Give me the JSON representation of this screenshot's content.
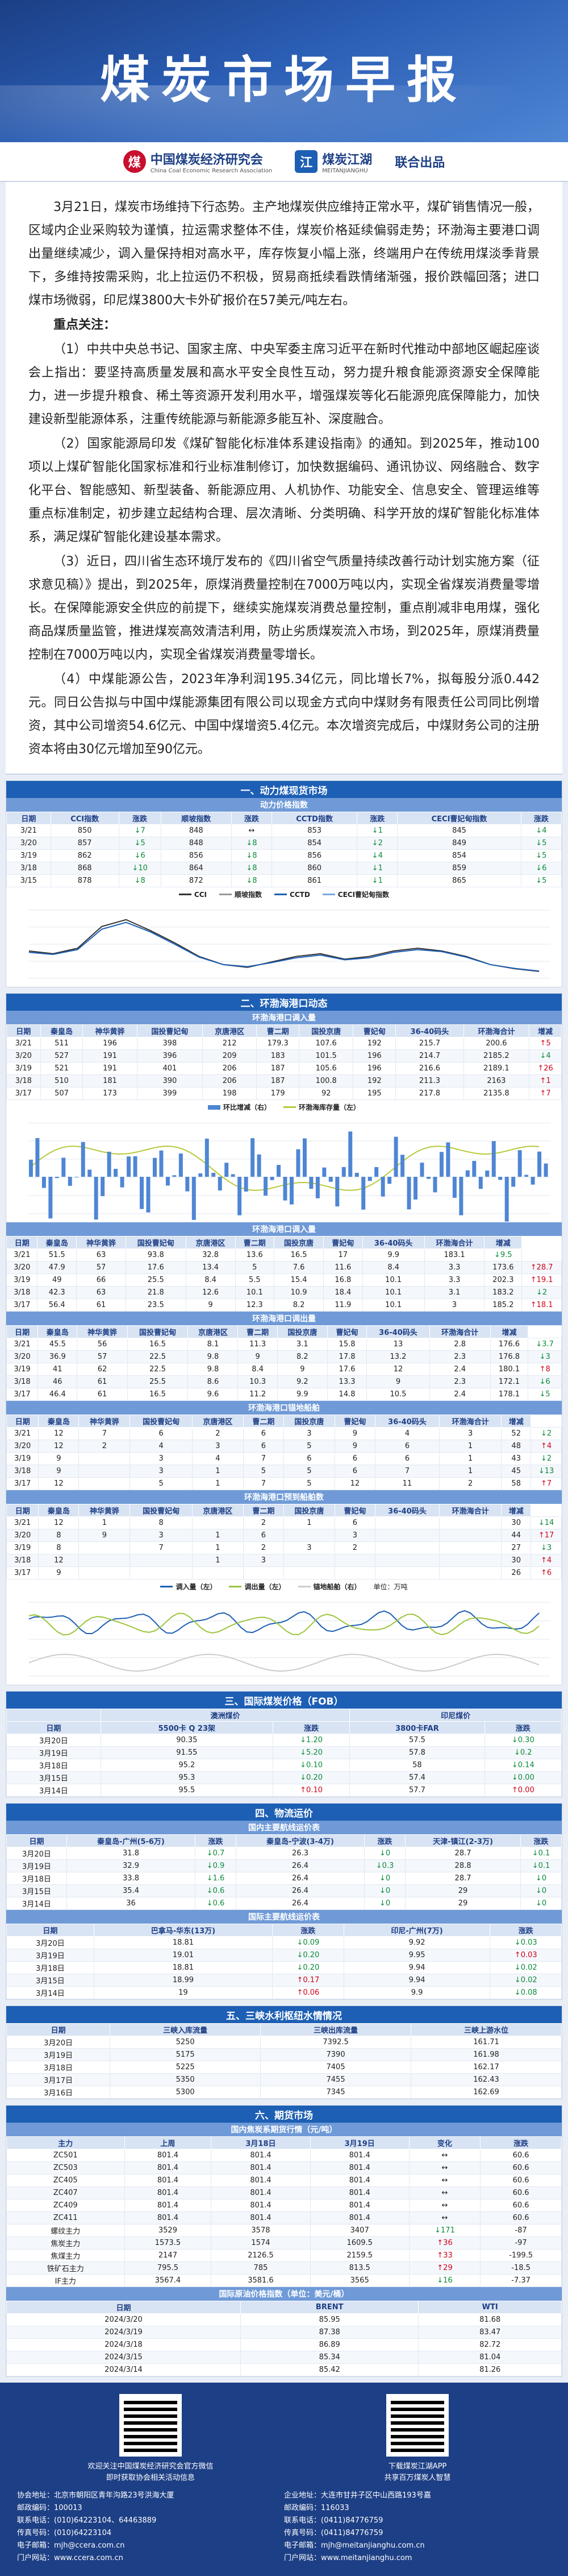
{
  "banner": {
    "title": "煤炭市场早报"
  },
  "logos": {
    "org1_cn": "中国煤炭经济研究会",
    "org1_en": "China Coal Economic Research Association",
    "org2_cn": "煤炭江湖",
    "org2_en": "MEITANJIANGHU",
    "joint": "联合出品"
  },
  "summary": {
    "p1": "3月21日，煤炭市场维持下行态势。主产地煤炭供应维持正常水平，煤矿销售情况一般，区域内企业采购较为谨慎，拉运需求整体不佳，煤炭价格延续偏弱走势；环渤海主要港口调出量继续减少，调入量保持相对高水平，库存恢复小幅上涨，终端用户在传统用煤淡季背景下，多维持按需采购，北上拉运仍不积极，贸易商抵续看跌情绪渐强，报价跌幅回落；进口煤市场微弱，印尼煤3800大卡外矿报价在57美元/吨左右。",
    "key_title": "重点关注：",
    "k1": "（1）中共中央总书记、国家主席、中央军委主席习近平在新时代推动中部地区崛起座谈会上指出：要坚持高质量发展和高水平安全良性互动，努力提升粮食能源资源安全保障能力，进一步提升粮食、稀土等资源开发利用水平，增强煤炭等化石能源兜底保障能力，加快建设新型能源体系，注重传统能源与新能源多能互补、深度融合。",
    "k2": "（2）国家能源局印发《煤矿智能化标准体系建设指南》的通知。到2025年，推动100项以上煤矿智能化国家标准和行业标准制修订，加快数据编码、通讯协议、网络融合、数字化平台、智能感知、新型装备、新能源应用、人机协作、功能安全、信息安全、管理运维等重点标准制定，初步建立起结构合理、层次清晰、分类明确、科学开放的煤矿智能化标准体系，满足煤矿智能化建设基本需求。",
    "k3": "（3）近日，四川省生态环境厅发布的《四川省空气质量持续改善行动计划实施方案（征求意见稿）》提出，到2025年，原煤消费量控制在7000万吨以内，实现全省煤炭消费量零增长。在保障能源安全供应的前提下，继续实施煤炭消费总量控制，重点削减非电用煤，强化商品煤质量监管，推进煤炭高效清洁利用，防止劣质煤炭流入市场，到2025年，原煤消费量控制在7000万吨以内，实现全省煤炭消费量零增长。",
    "k4": "（4）中煤能源公告，2023年净利润195.34亿元，同比增长7%，拟每股分派0.442元。同日公告拟与中国中煤能源集团有限公司以现金方式向中煤财务有限责任公司同比例增资，其中公司增资54.6亿元、中国中煤增资5.4亿元。本次增资完成后，中煤财务公司的注册资本将由30亿元增加至90亿元。"
  },
  "s1": {
    "title": "一、动力煤现货市场",
    "sub": "动力价格指数",
    "headers": [
      "日期",
      "CCI指数",
      "涨跌",
      "顺坡指数",
      "涨跌",
      "CCTD指数",
      "涨跌",
      "CECI曹妃甸指数",
      "涨跌"
    ],
    "rows": [
      [
        "3/21",
        "850",
        "↓7",
        "848",
        "↔",
        "853",
        "↓1",
        "845",
        "↓4"
      ],
      [
        "3/20",
        "857",
        "↓5",
        "848",
        "↓8",
        "854",
        "↓2",
        "849",
        "↓5"
      ],
      [
        "3/19",
        "862",
        "↓6",
        "856",
        "↓8",
        "856",
        "↓4",
        "854",
        "↓5"
      ],
      [
        "3/18",
        "868",
        "↓10",
        "864",
        "↓8",
        "860",
        "↓1",
        "859",
        "↓6"
      ],
      [
        "3/15",
        "878",
        "↓8",
        "872",
        "↓8",
        "861",
        "↓1",
        "865",
        "↓5"
      ]
    ],
    "legend": [
      "CCI",
      "顺坡指数",
      "CCTD",
      "CECI曹妃甸指数"
    ],
    "chart_data": {
      "type": "line",
      "series": [
        {
          "name": "CCI",
          "values": [
            1000,
            980,
            1020,
            1180,
            1230,
            1150,
            1060,
            960,
            900,
            880,
            920,
            960,
            980,
            940,
            960,
            1000,
            1020,
            1000,
            960,
            900,
            870,
            850
          ]
        },
        {
          "name": "CCTD",
          "values": [
            990,
            975,
            1010,
            1160,
            1210,
            1140,
            1050,
            955,
            900,
            885,
            915,
            950,
            970,
            935,
            950,
            990,
            1010,
            995,
            955,
            900,
            872,
            853
          ]
        }
      ]
    }
  },
  "s2": {
    "title": "二、环渤海港口动态",
    "sub1": "环渤海港口调入量",
    "headers": [
      "日期",
      "秦皇岛",
      "神华黄骅",
      "国投曹妃甸",
      "京唐港区",
      "曹二期",
      "国投京唐",
      "曹妃甸",
      "36-40码头",
      "环渤海合计",
      "增减"
    ],
    "inflow": [
      [
        "3/21",
        "511",
        "196",
        "398",
        "212",
        "179.3",
        "107.6",
        "192",
        "215.7",
        "200.6",
        "↑5"
      ],
      [
        "3/20",
        "527",
        "191",
        "396",
        "209",
        "183",
        "101.5",
        "196",
        "214.7",
        "2185.2",
        "↓4"
      ],
      [
        "3/19",
        "521",
        "191",
        "401",
        "206",
        "187",
        "105.6",
        "196",
        "216.6",
        "2189.1",
        "↑26"
      ],
      [
        "3/18",
        "510",
        "181",
        "390",
        "206",
        "187",
        "100.8",
        "192",
        "211.3",
        "2163",
        "↑1"
      ],
      [
        "3/17",
        "507",
        "173",
        "399",
        "198",
        "179",
        "92",
        "195",
        "217.8",
        "2135.8",
        "↑7"
      ]
    ],
    "chart1_legend": [
      "环比增减（右）",
      "环渤海库存量（左）"
    ],
    "sub2": "环渤海港口调入量",
    "inflow2": [
      [
        "3/21",
        "51.5",
        "63",
        "93.8",
        "32.8",
        "13.6",
        "16.5",
        "17",
        "9.9",
        "183.1",
        "↓9.5"
      ],
      [
        "3/20",
        "47.9",
        "57",
        "17.6",
        "13.4",
        "5",
        "7.6",
        "11.6",
        "8.4",
        "3.3",
        "173.6",
        "↑28.7"
      ],
      [
        "3/19",
        "49",
        "66",
        "25.5",
        "8.4",
        "5.5",
        "15.4",
        "16.8",
        "10.1",
        "3.3",
        "202.3",
        "↑19.1"
      ],
      [
        "3/18",
        "42.3",
        "63",
        "21.8",
        "12.6",
        "10.1",
        "10.9",
        "18.4",
        "10.1",
        "3.1",
        "183.2",
        "↓2"
      ],
      [
        "3/17",
        "56.4",
        "61",
        "23.5",
        "9",
        "12.3",
        "8.2",
        "11.9",
        "10.1",
        "3",
        "185.2",
        "↑18.1"
      ]
    ],
    "sub3": "环渤海港口调出量",
    "outflow": [
      [
        "3/21",
        "45.5",
        "56",
        "16.5",
        "8.1",
        "11.3",
        "3.1",
        "15.8",
        "13",
        "2.8",
        "176.6",
        "↓3.7"
      ],
      [
        "3/20",
        "36.9",
        "57",
        "22.5",
        "9.8",
        "9",
        "8.2",
        "17.8",
        "13.2",
        "2.3",
        "176.8",
        "↓3"
      ],
      [
        "3/19",
        "41",
        "62",
        "22.5",
        "9.8",
        "8.4",
        "9",
        "17.6",
        "12",
        "2.4",
        "180.1",
        "↑8"
      ],
      [
        "3/18",
        "46",
        "61",
        "25.5",
        "8.6",
        "10.3",
        "9.2",
        "13.3",
        "9",
        "2.3",
        "172.1",
        "↓6"
      ],
      [
        "3/17",
        "46.4",
        "61",
        "16.5",
        "9.6",
        "11.2",
        "9.9",
        "14.8",
        "10.5",
        "2.4",
        "178.1",
        "↓5"
      ]
    ],
    "sub4": "环渤海港口锚地船舶",
    "anchor": [
      [
        "3/21",
        "12",
        "7",
        "6",
        "2",
        "6",
        "3",
        "9",
        "4",
        "3",
        "52",
        "↓2"
      ],
      [
        "3/20",
        "12",
        "2",
        "4",
        "3",
        "6",
        "5",
        "9",
        "6",
        "1",
        "48",
        "↑4"
      ],
      [
        "3/19",
        "9",
        "",
        "3",
        "4",
        "7",
        "6",
        "6",
        "6",
        "1",
        "43",
        "↓2"
      ],
      [
        "3/18",
        "9",
        "",
        "3",
        "1",
        "5",
        "5",
        "6",
        "7",
        "1",
        "45",
        "↓13"
      ],
      [
        "3/17",
        "12",
        "",
        "5",
        "1",
        "7",
        "5",
        "12",
        "11",
        "2",
        "58",
        "↑7"
      ]
    ],
    "sub5": "环渤海港口预到船舶数",
    "arrival": [
      [
        "3/21",
        "12",
        "1",
        "8",
        "",
        "2",
        "1",
        "6",
        "",
        "",
        "30",
        "↓14"
      ],
      [
        "3/20",
        "8",
        "9",
        "3",
        "1",
        "6",
        "",
        "3",
        "",
        "",
        "44",
        "↑17"
      ],
      [
        "3/19",
        "8",
        "",
        "7",
        "1",
        "2",
        "3",
        "2",
        "",
        "",
        "27",
        "↓3"
      ],
      [
        "3/18",
        "12",
        "",
        "",
        "1",
        "3",
        "",
        "",
        "",
        "",
        "30",
        "↑4"
      ],
      [
        "3/17",
        "9",
        "",
        "",
        "",
        "",
        "",
        "",
        "",
        "",
        "26",
        "↑6"
      ]
    ],
    "chart2_legend": [
      "调入量（左）",
      "调出量（左）",
      "锚地船舶（右）"
    ],
    "chart2_unit": "单位：万吨"
  },
  "s3": {
    "title": "三、国际煤炭价格（FOB）",
    "sub_a": "澳洲煤价",
    "sub_b": "印尼煤价",
    "headers": [
      "日期",
      "5500卡 Q 23架",
      "涨跌",
      "3800卡FAR",
      "涨跌"
    ],
    "rows": [
      [
        "3月20日",
        "90.35",
        "↓1.20",
        "57.5",
        "↓0.30"
      ],
      [
        "3月19日",
        "91.55",
        "↓5.20",
        "57.8",
        "↓0.2"
      ],
      [
        "3月18日",
        "95.2",
        "↓0.10",
        "58",
        "↓0.14"
      ],
      [
        "3月15日",
        "95.3",
        "↓0.20",
        "57.4",
        "↓0.00"
      ],
      [
        "3月14日",
        "95.5",
        "↑0.10",
        "57.7",
        "↑0.00"
      ]
    ]
  },
  "s4": {
    "title": "四、物流运价",
    "sub1": "国内主要航线运价表",
    "headers1": [
      "日期",
      "秦皇岛-广州(5-6万)",
      "涨跌",
      "秦皇岛-宁波(3-4万)",
      "涨跌",
      "天津-镇江(2-3万)",
      "涨跌"
    ],
    "rows1": [
      [
        "3月20日",
        "31.8",
        "↓0.7",
        "26.3",
        "↓0",
        "28.7",
        "↓0.1"
      ],
      [
        "3月19日",
        "32.9",
        "↓0.9",
        "26.4",
        "↓0.3",
        "28.8",
        "↓0.1"
      ],
      [
        "3月18日",
        "33.8",
        "↓1.6",
        "26.4",
        "↓0",
        "28.7",
        "↓0"
      ],
      [
        "3月15日",
        "35.4",
        "↓0.6",
        "26.4",
        "↓0",
        "29",
        "↓0"
      ],
      [
        "3月14日",
        "36",
        "↓0.6",
        "26.4",
        "↓0",
        "29",
        "↓0"
      ]
    ],
    "sub2": "国际主要航线运价表",
    "headers2": [
      "日期",
      "巴拿马-华东(13万)",
      "涨跌",
      "印尼-广州(7万)",
      "涨跌"
    ],
    "rows2": [
      [
        "3月20日",
        "18.81",
        "↓0.09",
        "9.92",
        "↓0.03"
      ],
      [
        "3月19日",
        "19.01",
        "↓0.20",
        "9.95",
        "↑0.03"
      ],
      [
        "3月18日",
        "18.81",
        "↓0.20",
        "9.94",
        "↓0.02"
      ],
      [
        "3月15日",
        "18.99",
        "↑0.17",
        "9.94",
        "↓0.02"
      ],
      [
        "3月14日",
        "19",
        "↑0.06",
        "9.9",
        "↓0.08"
      ]
    ]
  },
  "s5": {
    "title": "五、三峡水利枢纽水情情况",
    "headers": [
      "日期",
      "三峡入库流量",
      "三峡出库流量",
      "三峡上游水位"
    ],
    "rows": [
      [
        "3月20日",
        "5250",
        "7392.5",
        "161.71"
      ],
      [
        "3月19日",
        "5175",
        "7390",
        "161.98"
      ],
      [
        "3月18日",
        "5225",
        "7405",
        "162.17"
      ],
      [
        "3月17日",
        "5350",
        "7455",
        "162.43"
      ],
      [
        "3月16日",
        "5300",
        "7345",
        "162.69"
      ]
    ]
  },
  "s6": {
    "title": "六、期货市场",
    "sub1": "国内焦炭系期货行情（元/吨）",
    "headers1": [
      "主力",
      "上周",
      "3月18日",
      "3月19日",
      "变化",
      "涨跌"
    ],
    "rows1": [
      [
        "ZC501",
        "801.4",
        "801.4",
        "801.4",
        "↔",
        "60.6"
      ],
      [
        "ZC503",
        "801.4",
        "801.4",
        "801.4",
        "↔",
        "60.6"
      ],
      [
        "ZC405",
        "801.4",
        "801.4",
        "801.4",
        "↔",
        "60.6"
      ],
      [
        "ZC407",
        "801.4",
        "801.4",
        "801.4",
        "↔",
        "60.6"
      ],
      [
        "ZC409",
        "801.4",
        "801.4",
        "801.4",
        "↔",
        "60.6"
      ],
      [
        "ZC411",
        "801.4",
        "801.4",
        "801.4",
        "↔",
        "60.6"
      ],
      [
        "螺纹主力",
        "3529",
        "3578",
        "3407",
        "↓171",
        "-87"
      ],
      [
        "焦炭主力",
        "1573.5",
        "1574",
        "1609.5",
        "↑36",
        "-97"
      ],
      [
        "焦煤主力",
        "2147",
        "2126.5",
        "2159.5",
        "↑33",
        "-199.5"
      ],
      [
        "铁矿石主力",
        "795.5",
        "785",
        "813.5",
        "↑29",
        "-18.5"
      ],
      [
        "IF主力",
        "3567.4",
        "3581.6",
        "3565",
        "↓16",
        "-7.37"
      ]
    ],
    "sub2": "国际原油价格指数（单位：美元/桶）",
    "headers2": [
      "日期",
      "BRENT",
      "WTI"
    ],
    "rows2": [
      [
        "2024/3/20",
        "85.95",
        "81.68"
      ],
      [
        "2024/3/19",
        "87.38",
        "83.47"
      ],
      [
        "2024/3/18",
        "86.89",
        "82.72"
      ],
      [
        "2024/3/15",
        "85.34",
        "81.04"
      ],
      [
        "2024/3/14",
        "85.42",
        "81.26"
      ]
    ]
  },
  "footer": {
    "left_text1": "欢迎关注中国煤炭经济研究会官方微信",
    "left_text2": "即时获取协会相关活动信息",
    "left_contact": [
      "协会地址：北京市朝阳区青年沟路23号洪海大厦",
      "邮政编码：100013",
      "联系电话：(010)64223104、64463889",
      "传真号码：(010)64223104",
      "电子邮箱：mjh@ccera.com.cn",
      "门户网站：www.ccera.com.cn"
    ],
    "right_text1": "下载煤炭江湖APP",
    "right_text2": "共享百万煤炭人智慧",
    "right_contact": [
      "企业地址：大连市甘井子区中山西路193号嘉",
      "邮政编码：116033",
      "联系电话：(0411)84776759",
      "传真号码：(0411)84776759",
      "电子邮箱：mjh@meitanjianghu.com.cn",
      "门户网站：www.meitanjianghu.com"
    ]
  }
}
